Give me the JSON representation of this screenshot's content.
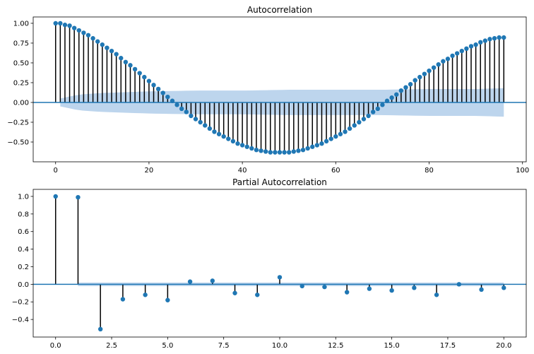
{
  "chart_data": [
    {
      "type": "stem",
      "title": "Autocorrelation",
      "xlabel": "",
      "ylabel": "",
      "xlim": [
        -4.8,
        100.8
      ],
      "ylim": [
        -0.75,
        1.08
      ],
      "xticks": [
        0,
        20,
        40,
        60,
        80,
        100
      ],
      "xtick_labels": [
        "0",
        "20",
        "40",
        "60",
        "80",
        "100"
      ],
      "yticks": [
        -0.5,
        -0.25,
        0.0,
        0.25,
        0.5,
        0.75,
        1.0
      ],
      "ytick_labels": [
        "−0.50",
        "−0.25",
        "0.00",
        "0.25",
        "0.50",
        "0.75",
        "1.00"
      ],
      "grid": false,
      "x": [
        0,
        1,
        2,
        3,
        4,
        5,
        6,
        7,
        8,
        9,
        10,
        11,
        12,
        13,
        14,
        15,
        16,
        17,
        18,
        19,
        20,
        21,
        22,
        23,
        24,
        25,
        26,
        27,
        28,
        29,
        30,
        31,
        32,
        33,
        34,
        35,
        36,
        37,
        38,
        39,
        40,
        41,
        42,
        43,
        44,
        45,
        46,
        47,
        48,
        49,
        50,
        51,
        52,
        53,
        54,
        55,
        56,
        57,
        58,
        59,
        60,
        61,
        62,
        63,
        64,
        65,
        66,
        67,
        68,
        69,
        70,
        71,
        72,
        73,
        74,
        75,
        76,
        77,
        78,
        79,
        80,
        81,
        82,
        83,
        84,
        85,
        86,
        87,
        88,
        89,
        90,
        91,
        92,
        93,
        94,
        95,
        96
      ],
      "values": [
        1.0,
        1.0,
        0.98,
        0.97,
        0.94,
        0.91,
        0.88,
        0.85,
        0.81,
        0.77,
        0.73,
        0.69,
        0.65,
        0.61,
        0.56,
        0.51,
        0.47,
        0.42,
        0.37,
        0.32,
        0.27,
        0.22,
        0.17,
        0.12,
        0.07,
        0.02,
        -0.03,
        -0.08,
        -0.12,
        -0.17,
        -0.21,
        -0.25,
        -0.29,
        -0.33,
        -0.37,
        -0.4,
        -0.43,
        -0.46,
        -0.49,
        -0.52,
        -0.54,
        -0.56,
        -0.58,
        -0.6,
        -0.61,
        -0.62,
        -0.63,
        -0.63,
        -0.63,
        -0.63,
        -0.63,
        -0.62,
        -0.61,
        -0.6,
        -0.58,
        -0.56,
        -0.54,
        -0.52,
        -0.49,
        -0.46,
        -0.43,
        -0.4,
        -0.37,
        -0.33,
        -0.29,
        -0.25,
        -0.21,
        -0.17,
        -0.12,
        -0.08,
        -0.03,
        0.02,
        0.06,
        0.1,
        0.15,
        0.19,
        0.23,
        0.28,
        0.32,
        0.36,
        0.4,
        0.44,
        0.48,
        0.52,
        0.55,
        0.59,
        0.62,
        0.65,
        0.68,
        0.71,
        0.73,
        0.76,
        0.78,
        0.8,
        0.81,
        0.82,
        0.82
      ],
      "confidence_band": {
        "x": [
          1,
          5,
          10,
          20,
          30,
          40,
          50,
          60,
          70,
          80,
          90,
          96
        ],
        "upper": [
          0.05,
          0.1,
          0.12,
          0.14,
          0.15,
          0.15,
          0.16,
          0.16,
          0.16,
          0.17,
          0.17,
          0.18
        ],
        "lower": [
          -0.05,
          -0.1,
          -0.12,
          -0.14,
          -0.15,
          -0.15,
          -0.16,
          -0.16,
          -0.16,
          -0.17,
          -0.17,
          -0.18
        ]
      },
      "colors": {
        "marker": "#1f77b4",
        "stem": "#000000",
        "zero_line": "#1f77b4",
        "band": "#a7c7e7"
      }
    },
    {
      "type": "stem",
      "title": "Partial Autocorrelation",
      "xlabel": "",
      "ylabel": "",
      "xlim": [
        -1.0,
        21.0
      ],
      "ylim": [
        -0.6,
        1.08
      ],
      "xticks": [
        0,
        2.5,
        5,
        7.5,
        10,
        12.5,
        15,
        17.5,
        20
      ],
      "xtick_labels": [
        "0.0",
        "2.5",
        "5.0",
        "7.5",
        "10.0",
        "12.5",
        "15.0",
        "17.5",
        "20.0"
      ],
      "yticks": [
        -0.4,
        -0.2,
        0.0,
        0.2,
        0.4,
        0.6,
        0.8,
        1.0
      ],
      "ytick_labels": [
        "−0.4",
        "−0.2",
        "0.0",
        "0.2",
        "0.4",
        "0.6",
        "0.8",
        "1.0"
      ],
      "grid": false,
      "x": [
        0,
        1,
        2,
        3,
        4,
        5,
        6,
        7,
        8,
        9,
        10,
        11,
        12,
        13,
        14,
        15,
        16,
        17,
        18,
        19,
        20
      ],
      "values": [
        1.0,
        0.99,
        -0.51,
        -0.17,
        -0.12,
        -0.18,
        0.03,
        0.04,
        -0.1,
        -0.12,
        0.08,
        -0.02,
        -0.03,
        -0.09,
        -0.05,
        -0.07,
        -0.04,
        -0.12,
        0.0,
        -0.06,
        -0.04
      ],
      "confidence_band": {
        "x": [
          1,
          20
        ],
        "upper": [
          0.02,
          0.02
        ],
        "lower": [
          -0.02,
          -0.02
        ]
      },
      "colors": {
        "marker": "#1f77b4",
        "stem": "#000000",
        "zero_line": "#1f77b4",
        "band": "#a7c7e7"
      }
    }
  ]
}
